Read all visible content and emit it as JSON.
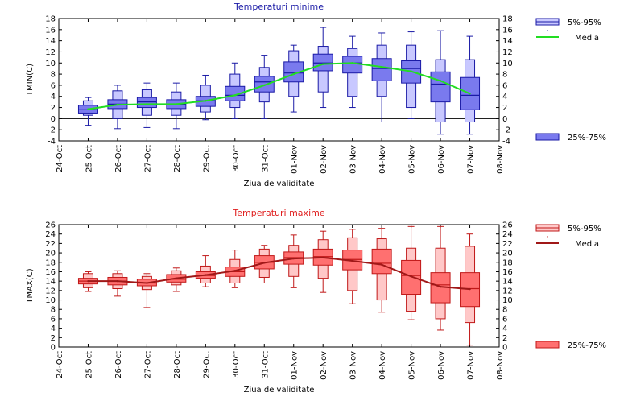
{
  "chart_data": [
    {
      "type": "box",
      "title": "Temperaturi minime",
      "title_color": "#1a1aa6",
      "xlabel": "Ziua de validitate",
      "ylabel": "TMIN(C)",
      "ylim": [
        -4,
        18
      ],
      "yticks": [
        -4,
        -2,
        0,
        2,
        4,
        6,
        8,
        10,
        12,
        14,
        16,
        18
      ],
      "xtick_labels": [
        "24-Oct",
        "25-Oct",
        "26-Oct",
        "27-Oct",
        "28-Oct",
        "29-Oct",
        "30-Oct",
        "31-Oct",
        "01-Nov",
        "02-Nov",
        "03-Nov",
        "04-Nov",
        "05-Nov",
        "06-Nov",
        "07-Nov",
        "08-Nov"
      ],
      "categories": [
        "25-Oct",
        "26-Oct",
        "27-Oct",
        "28-Oct",
        "29-Oct",
        "30-Oct",
        "31-Oct",
        "01-Nov",
        "02-Nov",
        "03-Nov",
        "04-Nov",
        "05-Nov",
        "06-Nov",
        "07-Nov"
      ],
      "whisker_low": [
        -1.2,
        -1.8,
        -1.6,
        -1.8,
        -0.2,
        0.0,
        0.0,
        1.2,
        2.0,
        2.0,
        -0.6,
        0.0,
        -2.8,
        -2.8
      ],
      "p5": [
        0.6,
        0.0,
        0.6,
        0.6,
        1.2,
        2.0,
        3.0,
        4.0,
        4.8,
        4.0,
        4.0,
        2.0,
        -0.6,
        -0.6
      ],
      "p25": [
        1.0,
        1.8,
        2.0,
        1.8,
        2.2,
        3.2,
        4.8,
        6.6,
        8.6,
        8.2,
        6.8,
        6.4,
        3.0,
        1.6
      ],
      "median": [
        1.6,
        2.6,
        3.0,
        2.6,
        3.2,
        4.2,
        6.6,
        8.2,
        10.0,
        10.0,
        9.0,
        9.0,
        6.2,
        4.2
      ],
      "p75": [
        2.4,
        3.4,
        3.8,
        3.4,
        4.0,
        5.8,
        7.6,
        10.2,
        11.6,
        11.2,
        10.8,
        10.4,
        8.4,
        7.4
      ],
      "p95": [
        3.2,
        5.0,
        5.2,
        4.8,
        6.0,
        8.0,
        9.2,
        12.2,
        13.0,
        12.6,
        13.2,
        13.2,
        10.6,
        10.6
      ],
      "whisker_high": [
        3.8,
        6.0,
        6.4,
        6.4,
        7.8,
        10.0,
        11.4,
        13.2,
        16.4,
        14.8,
        15.4,
        15.6,
        15.8,
        14.8
      ],
      "mean": [
        1.7,
        2.5,
        2.6,
        2.6,
        3.2,
        4.2,
        6.0,
        8.0,
        9.8,
        10.0,
        9.3,
        8.5,
        6.8,
        4.5
      ],
      "mean_color": "#22dd22",
      "outer_fill": "#c8c8ff",
      "inner_fill": "#7a7aee",
      "stroke": "#1a1aa6",
      "legend": {
        "outer_label": "5%-95%",
        "mean_label": "Media",
        "inner_label": "25%-75%"
      }
    },
    {
      "type": "box",
      "title": "Temperaturi maxime",
      "title_color": "#e02020",
      "xlabel": "Ziua de validitate",
      "ylabel": "TMAX(C)",
      "ylim": [
        0,
        26
      ],
      "yticks": [
        0,
        2,
        4,
        6,
        8,
        10,
        12,
        14,
        16,
        18,
        20,
        22,
        24,
        26
      ],
      "xtick_labels": [
        "24-Oct",
        "25-Oct",
        "26-Oct",
        "27-Oct",
        "28-Oct",
        "29-Oct",
        "30-Oct",
        "31-Oct",
        "01-Nov",
        "02-Nov",
        "03-Nov",
        "04-Nov",
        "05-Nov",
        "06-Nov",
        "07-Nov",
        "08-Nov"
      ],
      "categories": [
        "25-Oct",
        "26-Oct",
        "27-Oct",
        "28-Oct",
        "29-Oct",
        "30-Oct",
        "31-Oct",
        "01-Nov",
        "02-Nov",
        "03-Nov",
        "04-Nov",
        "05-Nov",
        "06-Nov",
        "07-Nov"
      ],
      "whisker_low": [
        11.8,
        10.8,
        8.4,
        11.8,
        12.8,
        12.6,
        13.6,
        12.6,
        11.6,
        9.2,
        7.4,
        5.8,
        3.6,
        0.4
      ],
      "p5": [
        12.6,
        12.4,
        12.2,
        13.2,
        13.6,
        13.6,
        14.8,
        15.0,
        14.6,
        12.0,
        10.0,
        7.6,
        6.0,
        5.2
      ],
      "p25": [
        13.4,
        13.2,
        13.0,
        13.8,
        14.6,
        15.0,
        16.6,
        17.6,
        17.4,
        16.4,
        15.6,
        11.2,
        9.4,
        8.6
      ],
      "median": [
        14.0,
        14.0,
        13.6,
        14.4,
        15.2,
        16.0,
        18.0,
        19.0,
        19.2,
        18.6,
        17.8,
        15.2,
        13.2,
        12.4
      ],
      "p75": [
        14.6,
        14.8,
        14.4,
        15.4,
        16.0,
        17.0,
        19.4,
        20.2,
        20.8,
        20.6,
        20.8,
        18.4,
        15.8,
        15.8
      ],
      "p95": [
        15.6,
        15.6,
        15.0,
        16.2,
        17.2,
        18.6,
        20.8,
        21.6,
        22.8,
        23.2,
        23.0,
        21.0,
        21.0,
        21.4
      ],
      "whisker_high": [
        16.0,
        16.2,
        15.6,
        16.8,
        19.4,
        20.6,
        21.6,
        23.8,
        24.6,
        25.0,
        25.2,
        25.6,
        25.6,
        24.0
      ],
      "mean": [
        14.0,
        14.0,
        13.6,
        14.6,
        15.3,
        16.2,
        17.9,
        18.8,
        19.0,
        18.3,
        17.5,
        15.0,
        12.8,
        12.3
      ],
      "mean_color": "#a01818",
      "outer_fill": "#ffc8c8",
      "inner_fill": "#ff7070",
      "stroke": "#c01818",
      "legend": {
        "outer_label": "5%-95%",
        "mean_label": "Media",
        "inner_label": "25%-75%"
      }
    }
  ]
}
